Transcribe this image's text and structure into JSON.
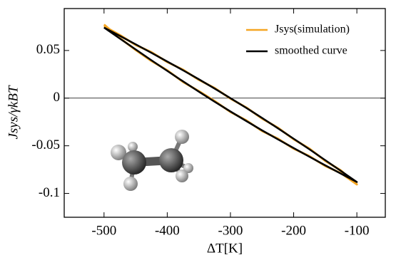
{
  "chart_data": {
    "type": "line",
    "x": [
      -500,
      -475,
      -450,
      -425,
      -400,
      -375,
      -350,
      -325,
      -300,
      -275,
      -250,
      -225,
      -200,
      -175,
      -150,
      -125,
      -100,
      -125,
      -150,
      -175,
      -200,
      -225,
      -250,
      -275,
      -300,
      -325,
      -350,
      -375,
      -400,
      -425,
      -450,
      -475,
      -500
    ],
    "series": [
      {
        "name": "Jsys(simulation)",
        "color": "#f5a623",
        "values": [
          0.0755,
          0.0662,
          0.0558,
          0.0482,
          0.0379,
          0.0298,
          0.0192,
          0.0106,
          -0.0005,
          -0.0098,
          -0.0214,
          -0.031,
          -0.0431,
          -0.053,
          -0.0658,
          -0.076,
          -0.0905,
          -0.0788,
          -0.0712,
          -0.0609,
          -0.053,
          -0.0425,
          -0.0345,
          -0.0233,
          -0.0145,
          -0.0031,
          0.0074,
          0.017,
          0.0292,
          0.039,
          0.0505,
          0.063,
          0.0772
        ]
      },
      {
        "name": "smoothed curve",
        "color": "#000000",
        "values": [
          0.074,
          0.0653,
          0.0565,
          0.0475,
          0.0384,
          0.0292,
          0.0198,
          0.01,
          0.0,
          -0.0102,
          -0.0208,
          -0.0316,
          -0.0426,
          -0.0537,
          -0.0651,
          -0.0765,
          -0.088,
          -0.0793,
          -0.0705,
          -0.0615,
          -0.0524,
          -0.0432,
          -0.0338,
          -0.024,
          -0.014,
          -0.0038,
          0.0068,
          0.0176,
          0.0286,
          0.0397,
          0.0511,
          0.0625,
          0.074
        ]
      }
    ],
    "xlabel": "ΔT[K]",
    "ylabel": "Jsys/γkBT",
    "xlim": [
      -563,
      -55
    ],
    "ylim": [
      -0.125,
      0.094
    ],
    "xticks": [
      -500,
      -400,
      -300,
      -200,
      -100
    ],
    "yticks": [
      -0.1,
      -0.05,
      0,
      0.05
    ],
    "legend": "upper right",
    "zero_line": true
  }
}
